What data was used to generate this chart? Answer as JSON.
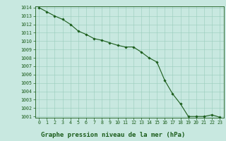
{
  "x": [
    0,
    1,
    2,
    3,
    4,
    5,
    6,
    7,
    8,
    9,
    10,
    11,
    12,
    13,
    14,
    15,
    16,
    17,
    18,
    19,
    20,
    21,
    22,
    23
  ],
  "y": [
    1014.0,
    1013.5,
    1013.0,
    1012.6,
    1012.0,
    1011.2,
    1010.8,
    1010.3,
    1010.1,
    1009.8,
    1009.5,
    1009.3,
    1009.3,
    1008.7,
    1008.0,
    1007.5,
    1005.3,
    1003.7,
    1002.5,
    1001.0,
    1001.0,
    1001.0,
    1001.2,
    1000.9
  ],
  "line_color": "#1a5c1a",
  "marker": "D",
  "marker_size": 1.8,
  "bg_color": "#c8e8e0",
  "grid_color": "#99ccbb",
  "title": "Graphe pression niveau de la mer (hPa)",
  "title_color": "#1a5c1a",
  "ylim_min": 1001,
  "ylim_max": 1014,
  "xlim_min": 0,
  "xlim_max": 23,
  "ytick_step": 1,
  "xtick_labels": [
    "0",
    "1",
    "2",
    "3",
    "4",
    "5",
    "6",
    "7",
    "8",
    "9",
    "10",
    "11",
    "12",
    "13",
    "14",
    "15",
    "16",
    "17",
    "18",
    "19",
    "20",
    "21",
    "22",
    "23"
  ],
  "tick_color": "#1a5c1a",
  "tick_fontsize": 4.8,
  "title_fontsize": 6.5,
  "line_width": 0.8
}
